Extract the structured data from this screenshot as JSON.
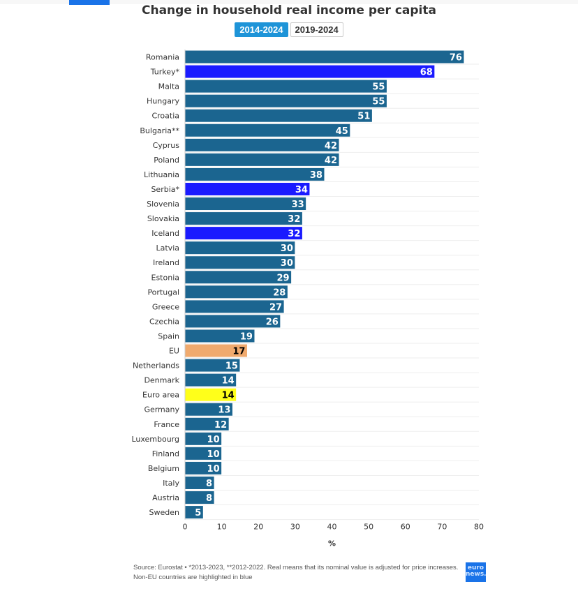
{
  "header": {
    "title": "Change in household real income per capita",
    "tabs": [
      {
        "label": "2014-2024",
        "active": true
      },
      {
        "label": "2019-2024",
        "active": false
      }
    ]
  },
  "chart_data": {
    "type": "bar",
    "orientation": "horizontal",
    "title": "Change in household real income per capita",
    "categories": [
      "Romania",
      "Turkey*",
      "Malta",
      "Hungary",
      "Croatia",
      "Bulgaria**",
      "Cyprus",
      "Poland",
      "Lithuania",
      "Serbia*",
      "Slovenia",
      "Slovakia",
      "Iceland",
      "Latvia",
      "Ireland",
      "Estonia",
      "Portugal",
      "Greece",
      "Czechia",
      "Spain",
      "EU",
      "Netherlands",
      "Denmark",
      "Euro area",
      "Germany",
      "France",
      "Luxembourg",
      "Finland",
      "Belgium",
      "Italy",
      "Austria",
      "Sweden"
    ],
    "values": [
      76,
      68,
      55,
      55,
      51,
      45,
      42,
      42,
      38,
      34,
      33,
      32,
      32,
      30,
      30,
      29,
      28,
      27,
      26,
      19,
      17,
      15,
      14,
      14,
      13,
      12,
      10,
      10,
      10,
      8,
      8,
      5
    ],
    "highlight": {
      "Turkey*": "non-eu",
      "Serbia*": "non-eu",
      "Iceland": "non-eu",
      "EU": "eu",
      "Euro area": "euro-area"
    },
    "colors": {
      "default": "#1b6590",
      "non-eu": "#1a1aff",
      "eu": "#f0aa6e",
      "euro-area": "#ffff1a"
    },
    "xlabel": "%",
    "xlim": [
      0,
      80
    ],
    "xticks": [
      0,
      10,
      20,
      30,
      40,
      50,
      60,
      70,
      80
    ],
    "grid": true
  },
  "footer": {
    "source": "Source: Eurostat • *2013-2023, **2012-2022. Real means that its nominal value is adjusted for price increases.",
    "note": "Non-EU countries are highlighted in blue",
    "logo": "euro news."
  }
}
